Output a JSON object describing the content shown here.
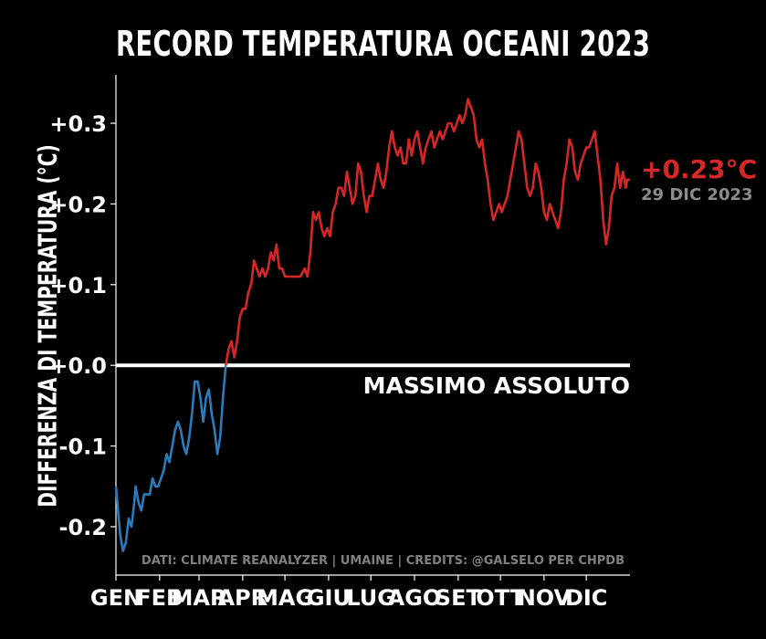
{
  "title": "RECORD TEMPERATURA OCEANI 2023",
  "colors": {
    "background": "#000000",
    "foreground": "#ffffff",
    "below": "#2b7bba",
    "above": "#d62728",
    "muted": "#8c8c8c",
    "credit": "#808080"
  },
  "chart_data": {
    "type": "line",
    "title": "RECORD TEMPERATURA OCEANI 2023",
    "ylabel": "DIFFERENZA DI TEMPERATURA (°C)",
    "xlabel": "",
    "ylim": [
      -0.26,
      0.36
    ],
    "xlim": [
      1,
      366
    ],
    "y_ticks": [
      {
        "value": 0.3,
        "label": "+0.3"
      },
      {
        "value": 0.2,
        "label": "+0.2"
      },
      {
        "value": 0.1,
        "label": "+0.1"
      },
      {
        "value": 0.0,
        "label": "+0.0"
      },
      {
        "value": -0.1,
        "label": "-0.1"
      },
      {
        "value": -0.2,
        "label": "-0.2"
      }
    ],
    "x_ticks": [
      {
        "value": 1,
        "label": "GEN"
      },
      {
        "value": 32,
        "label": "FEB"
      },
      {
        "value": 60,
        "label": "MAR"
      },
      {
        "value": 91,
        "label": "APR"
      },
      {
        "value": 121,
        "label": "MAG"
      },
      {
        "value": 152,
        "label": "GIU"
      },
      {
        "value": 182,
        "label": "LUG"
      },
      {
        "value": 213,
        "label": "AGO"
      },
      {
        "value": 244,
        "label": "SET"
      },
      {
        "value": 274,
        "label": "OTT"
      },
      {
        "value": 305,
        "label": "NOV"
      },
      {
        "value": 335,
        "label": "DIC"
      }
    ],
    "x_unit": "day of year 2023",
    "reference_line": {
      "value": 0.0,
      "label": "MASSIMO ASSOLUTO"
    },
    "series": [
      {
        "points": [
          [
            1,
            -0.15
          ],
          [
            4,
            -0.21
          ],
          [
            6,
            -0.23
          ],
          [
            8,
            -0.22
          ],
          [
            10,
            -0.19
          ],
          [
            12,
            -0.2
          ],
          [
            14,
            -0.17
          ],
          [
            15,
            -0.15
          ],
          [
            17,
            -0.17
          ],
          [
            19,
            -0.18
          ],
          [
            21,
            -0.16
          ],
          [
            23,
            -0.16
          ],
          [
            25,
            -0.16
          ],
          [
            27,
            -0.14
          ],
          [
            29,
            -0.15
          ],
          [
            31,
            -0.15
          ],
          [
            33,
            -0.14
          ],
          [
            35,
            -0.13
          ],
          [
            37,
            -0.11
          ],
          [
            39,
            -0.12
          ],
          [
            41,
            -0.1
          ],
          [
            43,
            -0.08
          ],
          [
            45,
            -0.07
          ],
          [
            47,
            -0.08
          ],
          [
            49,
            -0.1
          ],
          [
            51,
            -0.11
          ],
          [
            53,
            -0.09
          ],
          [
            55,
            -0.06
          ],
          [
            57,
            -0.02
          ],
          [
            59,
            -0.02
          ],
          [
            61,
            -0.04
          ],
          [
            63,
            -0.07
          ],
          [
            65,
            -0.04
          ],
          [
            67,
            -0.03
          ],
          [
            69,
            -0.06
          ],
          [
            71,
            -0.08
          ],
          [
            73,
            -0.11
          ],
          [
            75,
            -0.09
          ],
          [
            77,
            -0.04
          ],
          [
            79,
            0.0
          ],
          [
            81,
            0.02
          ],
          [
            83,
            0.03
          ],
          [
            85,
            0.01
          ],
          [
            87,
            0.03
          ],
          [
            89,
            0.06
          ],
          [
            91,
            0.07
          ],
          [
            93,
            0.07
          ],
          [
            95,
            0.09
          ],
          [
            97,
            0.1
          ],
          [
            99,
            0.13
          ],
          [
            101,
            0.12
          ],
          [
            103,
            0.11
          ],
          [
            105,
            0.12
          ],
          [
            107,
            0.11
          ],
          [
            109,
            0.12
          ],
          [
            111,
            0.14
          ],
          [
            113,
            0.13
          ],
          [
            115,
            0.15
          ],
          [
            117,
            0.12
          ],
          [
            119,
            0.12
          ],
          [
            121,
            0.11
          ],
          [
            123,
            0.11
          ],
          [
            126,
            0.11
          ],
          [
            129,
            0.11
          ],
          [
            132,
            0.11
          ],
          [
            135,
            0.12
          ],
          [
            137,
            0.11
          ],
          [
            139,
            0.14
          ],
          [
            141,
            0.19
          ],
          [
            143,
            0.18
          ],
          [
            145,
            0.19
          ],
          [
            147,
            0.17
          ],
          [
            149,
            0.16
          ],
          [
            151,
            0.17
          ],
          [
            153,
            0.16
          ],
          [
            155,
            0.19
          ],
          [
            157,
            0.2
          ],
          [
            159,
            0.22
          ],
          [
            161,
            0.22
          ],
          [
            163,
            0.21
          ],
          [
            165,
            0.24
          ],
          [
            167,
            0.22
          ],
          [
            169,
            0.2
          ],
          [
            171,
            0.21
          ],
          [
            173,
            0.25
          ],
          [
            175,
            0.24
          ],
          [
            177,
            0.21
          ],
          [
            179,
            0.19
          ],
          [
            181,
            0.21
          ],
          [
            183,
            0.21
          ],
          [
            185,
            0.23
          ],
          [
            187,
            0.25
          ],
          [
            189,
            0.23
          ],
          [
            191,
            0.22
          ],
          [
            193,
            0.24
          ],
          [
            195,
            0.27
          ],
          [
            197,
            0.29
          ],
          [
            199,
            0.27
          ],
          [
            201,
            0.26
          ],
          [
            203,
            0.27
          ],
          [
            205,
            0.25
          ],
          [
            207,
            0.25
          ],
          [
            209,
            0.28
          ],
          [
            211,
            0.26
          ],
          [
            213,
            0.28
          ],
          [
            215,
            0.29
          ],
          [
            217,
            0.27
          ],
          [
            219,
            0.25
          ],
          [
            221,
            0.27
          ],
          [
            223,
            0.28
          ],
          [
            225,
            0.29
          ],
          [
            227,
            0.27
          ],
          [
            229,
            0.28
          ],
          [
            231,
            0.29
          ],
          [
            233,
            0.28
          ],
          [
            235,
            0.29
          ],
          [
            237,
            0.3
          ],
          [
            239,
            0.3
          ],
          [
            241,
            0.29
          ],
          [
            243,
            0.3
          ],
          [
            245,
            0.31
          ],
          [
            247,
            0.3
          ],
          [
            249,
            0.31
          ],
          [
            251,
            0.33
          ],
          [
            253,
            0.32
          ],
          [
            255,
            0.31
          ],
          [
            257,
            0.28
          ],
          [
            259,
            0.27
          ],
          [
            261,
            0.28
          ],
          [
            263,
            0.25
          ],
          [
            265,
            0.23
          ],
          [
            267,
            0.2
          ],
          [
            269,
            0.18
          ],
          [
            271,
            0.19
          ],
          [
            273,
            0.2
          ],
          [
            275,
            0.19
          ],
          [
            277,
            0.2
          ],
          [
            279,
            0.21
          ],
          [
            281,
            0.23
          ],
          [
            283,
            0.25
          ],
          [
            285,
            0.27
          ],
          [
            287,
            0.29
          ],
          [
            289,
            0.28
          ],
          [
            291,
            0.25
          ],
          [
            293,
            0.22
          ],
          [
            295,
            0.21
          ],
          [
            297,
            0.22
          ],
          [
            299,
            0.25
          ],
          [
            301,
            0.24
          ],
          [
            303,
            0.22
          ],
          [
            305,
            0.19
          ],
          [
            307,
            0.18
          ],
          [
            309,
            0.2
          ],
          [
            311,
            0.19
          ],
          [
            313,
            0.18
          ],
          [
            315,
            0.17
          ],
          [
            317,
            0.19
          ],
          [
            319,
            0.23
          ],
          [
            321,
            0.25
          ],
          [
            323,
            0.28
          ],
          [
            325,
            0.27
          ],
          [
            327,
            0.24
          ],
          [
            329,
            0.23
          ],
          [
            331,
            0.25
          ],
          [
            333,
            0.26
          ],
          [
            335,
            0.27
          ],
          [
            337,
            0.27
          ],
          [
            339,
            0.28
          ],
          [
            341,
            0.29
          ],
          [
            343,
            0.26
          ],
          [
            345,
            0.23
          ],
          [
            347,
            0.18
          ],
          [
            349,
            0.15
          ],
          [
            351,
            0.17
          ],
          [
            353,
            0.21
          ],
          [
            355,
            0.22
          ],
          [
            357,
            0.25
          ],
          [
            359,
            0.22
          ],
          [
            361,
            0.24
          ],
          [
            363,
            0.22
          ],
          [
            364,
            0.23
          ],
          [
            366,
            0.23
          ]
        ]
      }
    ],
    "annotation_value": "+0.23°C",
    "annotation_date": "29 DIC 2023",
    "credits": "DATI: CLIMATE REANALYZER | UMAINE | CREDITS: @GALSELO PER CHPDB"
  }
}
